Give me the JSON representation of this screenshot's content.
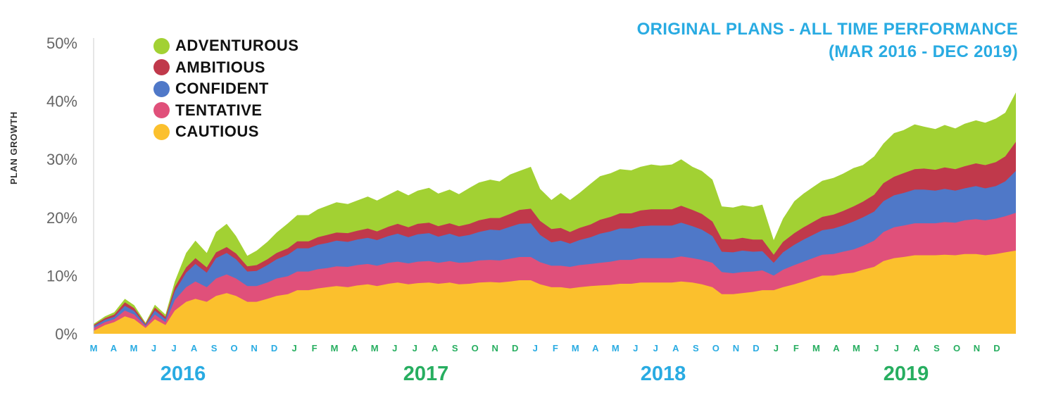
{
  "title": {
    "line1": "ORIGINAL PLANS - ALL TIME PERFORMANCE",
    "line2": "(MAR 2016 - DEC 2019)"
  },
  "colors": {
    "title": "#29abe2",
    "month_labels": "#29abe2",
    "year_blue": "#29abe2",
    "year_green": "#27ae60"
  },
  "chart_data": {
    "type": "area",
    "stacked": true,
    "ylabel": "PLAN GROWTH",
    "xlabel": "",
    "ylim": [
      0,
      50
    ],
    "y_ticks": [
      "0%",
      "10%",
      "20%",
      "30%",
      "40%",
      "50%"
    ],
    "grid": false,
    "legend_position": "top-left",
    "month_ticks": [
      "M",
      "A",
      "M",
      "J",
      "J",
      "A",
      "S",
      "O",
      "N",
      "D",
      "J",
      "F",
      "M",
      "A",
      "M",
      "J",
      "J",
      "A",
      "S",
      "O",
      "N",
      "D",
      "J",
      "F",
      "M",
      "A",
      "M",
      "J",
      "J",
      "A",
      "S",
      "O",
      "N",
      "D",
      "J",
      "F",
      "M",
      "A",
      "M",
      "J",
      "J",
      "A",
      "S",
      "O",
      "N",
      "D"
    ],
    "year_labels": [
      {
        "label": "2016",
        "color": "#29abe2"
      },
      {
        "label": "2017",
        "color": "#27ae60"
      },
      {
        "label": "2018",
        "color": "#29abe2"
      },
      {
        "label": "2019",
        "color": "#27ae60"
      }
    ],
    "x": [
      "2016-03-15",
      "2016-04-01",
      "2016-04-15",
      "2016-05-01",
      "2016-05-15",
      "2016-06-01",
      "2016-06-15",
      "2016-07-01",
      "2016-07-15",
      "2016-08-01",
      "2016-08-15",
      "2016-09-01",
      "2016-09-15",
      "2016-10-01",
      "2016-10-15",
      "2016-11-01",
      "2016-11-15",
      "2016-12-01",
      "2016-12-15",
      "2017-01-01",
      "2017-01-15",
      "2017-02-01",
      "2017-02-15",
      "2017-03-01",
      "2017-03-15",
      "2017-04-01",
      "2017-04-15",
      "2017-05-01",
      "2017-05-15",
      "2017-06-01",
      "2017-06-15",
      "2017-07-01",
      "2017-07-15",
      "2017-08-01",
      "2017-08-15",
      "2017-09-01",
      "2017-09-15",
      "2017-10-01",
      "2017-10-15",
      "2017-11-01",
      "2017-11-15",
      "2017-12-01",
      "2017-12-15",
      "2018-01-01",
      "2018-01-15",
      "2018-02-01",
      "2018-02-15",
      "2018-03-01",
      "2018-03-15",
      "2018-04-01",
      "2018-04-15",
      "2018-05-01",
      "2018-05-15",
      "2018-06-01",
      "2018-06-15",
      "2018-07-01",
      "2018-07-15",
      "2018-08-01",
      "2018-08-15",
      "2018-09-01",
      "2018-09-15",
      "2018-10-01",
      "2018-10-15",
      "2018-11-01",
      "2018-11-15",
      "2018-12-01",
      "2018-12-15",
      "2019-01-01",
      "2019-01-15",
      "2019-02-01",
      "2019-02-15",
      "2019-03-01",
      "2019-03-15",
      "2019-04-01",
      "2019-04-15",
      "2019-05-01",
      "2019-05-15",
      "2019-06-01",
      "2019-06-15",
      "2019-07-01",
      "2019-07-15",
      "2019-08-01",
      "2019-08-15",
      "2019-09-01",
      "2019-09-15",
      "2019-10-01",
      "2019-10-15",
      "2019-11-01",
      "2019-11-15",
      "2019-12-01",
      "2019-12-15",
      "2019-12-31"
    ],
    "series": [
      {
        "name": "CAUTIOUS",
        "color": "#fbc02d",
        "values": [
          0.5,
          1.5,
          2,
          3,
          2.5,
          1,
          2.5,
          1.5,
          4,
          5.5,
          6,
          5.5,
          6.5,
          7,
          6.5,
          5.5,
          5.5,
          6,
          6.5,
          6.8,
          7.5,
          7.5,
          7.8,
          8,
          8.2,
          8,
          8.3,
          8.5,
          8.2,
          8.6,
          8.8,
          8.5,
          8.7,
          8.8,
          8.6,
          8.8,
          8.5,
          8.6,
          8.8,
          8.9,
          8.8,
          9,
          9.2,
          9.2,
          8.5,
          8,
          8,
          7.8,
          8,
          8.2,
          8.3,
          8.4,
          8.6,
          8.6,
          8.8,
          8.8,
          8.8,
          8.8,
          9,
          8.8,
          8.5,
          8,
          6.8,
          6.8,
          7,
          7.2,
          7.5,
          7.5,
          8,
          8.5,
          9,
          9.5,
          10,
          10,
          10.3,
          10.5,
          11,
          11.5,
          12.5,
          13,
          13.2,
          13.5,
          13.5,
          13.5,
          13.6,
          13.5,
          13.7,
          13.7,
          13.5,
          13.7,
          14,
          14.3
        ]
      },
      {
        "name": "TENTATIVE",
        "color": "#e0507a",
        "values": [
          0.5,
          0.5,
          0.5,
          1,
          0.8,
          0.3,
          0.8,
          0.5,
          1.8,
          2.5,
          3,
          2.5,
          3,
          3.2,
          3,
          2.7,
          2.7,
          2.8,
          3,
          3.1,
          3.2,
          3.2,
          3.3,
          3.3,
          3.4,
          3.5,
          3.5,
          3.5,
          3.5,
          3.6,
          3.6,
          3.6,
          3.7,
          3.7,
          3.6,
          3.7,
          3.7,
          3.7,
          3.8,
          3.8,
          3.8,
          3.9,
          4,
          4,
          3.8,
          3.7,
          3.7,
          3.7,
          3.8,
          3.8,
          3.9,
          4,
          4.1,
          4.1,
          4.2,
          4.2,
          4.2,
          4.2,
          4.3,
          4.2,
          4.2,
          4.2,
          3.8,
          3.6,
          3.6,
          3.5,
          3.4,
          2.5,
          3,
          3.3,
          3.4,
          3.5,
          3.6,
          3.7,
          3.8,
          4,
          4.1,
          4.5,
          5,
          5.3,
          5.4,
          5.5,
          5.5,
          5.5,
          5.6,
          5.6,
          5.8,
          6,
          6,
          6.1,
          6.2,
          6.5
        ]
      },
      {
        "name": "CONFIDENT",
        "color": "#4f78c8",
        "values": [
          0.3,
          0.4,
          0.4,
          0.8,
          0.6,
          0.2,
          0.7,
          0.5,
          1.5,
          2.5,
          3,
          2.5,
          3.5,
          3.7,
          3.3,
          2.5,
          2.6,
          3,
          3.3,
          3.7,
          4,
          4,
          4.2,
          4.3,
          4.4,
          4.3,
          4.4,
          4.5,
          4.4,
          4.6,
          4.8,
          4.5,
          4.7,
          4.8,
          4.5,
          4.7,
          4.5,
          4.7,
          4.9,
          5.2,
          5.2,
          5.5,
          5.7,
          5.8,
          4.7,
          4,
          4.3,
          4,
          4.3,
          4.6,
          5,
          5.2,
          5.4,
          5.4,
          5.5,
          5.6,
          5.6,
          5.6,
          5.8,
          5.5,
          5.2,
          4.6,
          3.5,
          3.6,
          3.7,
          3.4,
          3.3,
          2.2,
          3,
          3.5,
          3.8,
          4,
          4.2,
          4.4,
          4.5,
          4.8,
          4.9,
          5,
          5.3,
          5.5,
          5.6,
          5.8,
          5.8,
          5.6,
          5.7,
          5.5,
          5.5,
          5.7,
          5.5,
          5.6,
          6,
          7.2
        ]
      },
      {
        "name": "AMBITIOUS",
        "color": "#c0394b",
        "values": [
          0.2,
          0.3,
          0.4,
          0.6,
          0.5,
          0.2,
          0.5,
          0.4,
          0.7,
          0.9,
          1,
          0.9,
          1,
          1,
          1,
          0.9,
          1,
          1,
          1.1,
          1.1,
          1.2,
          1.2,
          1.3,
          1.4,
          1.4,
          1.5,
          1.5,
          1.6,
          1.5,
          1.6,
          1.7,
          1.7,
          1.8,
          1.8,
          1.8,
          1.8,
          1.8,
          1.9,
          2,
          2,
          2.1,
          2.2,
          2.4,
          2.5,
          2.4,
          2.3,
          2.2,
          2,
          2.1,
          2.2,
          2.4,
          2.5,
          2.6,
          2.6,
          2.7,
          2.8,
          2.8,
          2.8,
          2.9,
          2.8,
          2.7,
          2.5,
          2.2,
          2.2,
          2.2,
          2.1,
          2,
          1.4,
          1.8,
          2,
          2.1,
          2.2,
          2.3,
          2.4,
          2.5,
          2.6,
          2.7,
          2.9,
          3.1,
          3.2,
          3.4,
          3.5,
          3.6,
          3.6,
          3.7,
          3.7,
          3.8,
          3.9,
          4,
          4.1,
          4.3,
          5
        ]
      },
      {
        "name": "ADVENTUROUS",
        "color": "#a2d133",
        "values": [
          0.2,
          0.3,
          0.4,
          0.6,
          0.5,
          0.2,
          0.5,
          0.4,
          1,
          2.5,
          3,
          2.5,
          3.5,
          4,
          3,
          1.8,
          2.5,
          3,
          3.5,
          4.3,
          4.5,
          4.5,
          4.8,
          5,
          5.2,
          5,
          5.2,
          5.5,
          5.3,
          5.5,
          5.8,
          5.5,
          5.7,
          6,
          5.6,
          5.8,
          5.5,
          6.2,
          6.5,
          6.6,
          6.3,
          6.8,
          6.7,
          7.2,
          5.5,
          5,
          6,
          5.5,
          6,
          7,
          7.5,
          7.5,
          7.6,
          7.4,
          7.5,
          7.7,
          7.5,
          7.7,
          8,
          7.4,
          7.4,
          7.2,
          5.6,
          5.5,
          5.6,
          5.6,
          6,
          2.5,
          4,
          5.5,
          5.8,
          6,
          6.2,
          6.3,
          6.4,
          6.6,
          6.3,
          6.6,
          6.8,
          7.5,
          7.4,
          7.7,
          7.2,
          7,
          7.3,
          7,
          7.3,
          7.4,
          7.3,
          7.5,
          7.5,
          8.5
        ]
      }
    ]
  }
}
